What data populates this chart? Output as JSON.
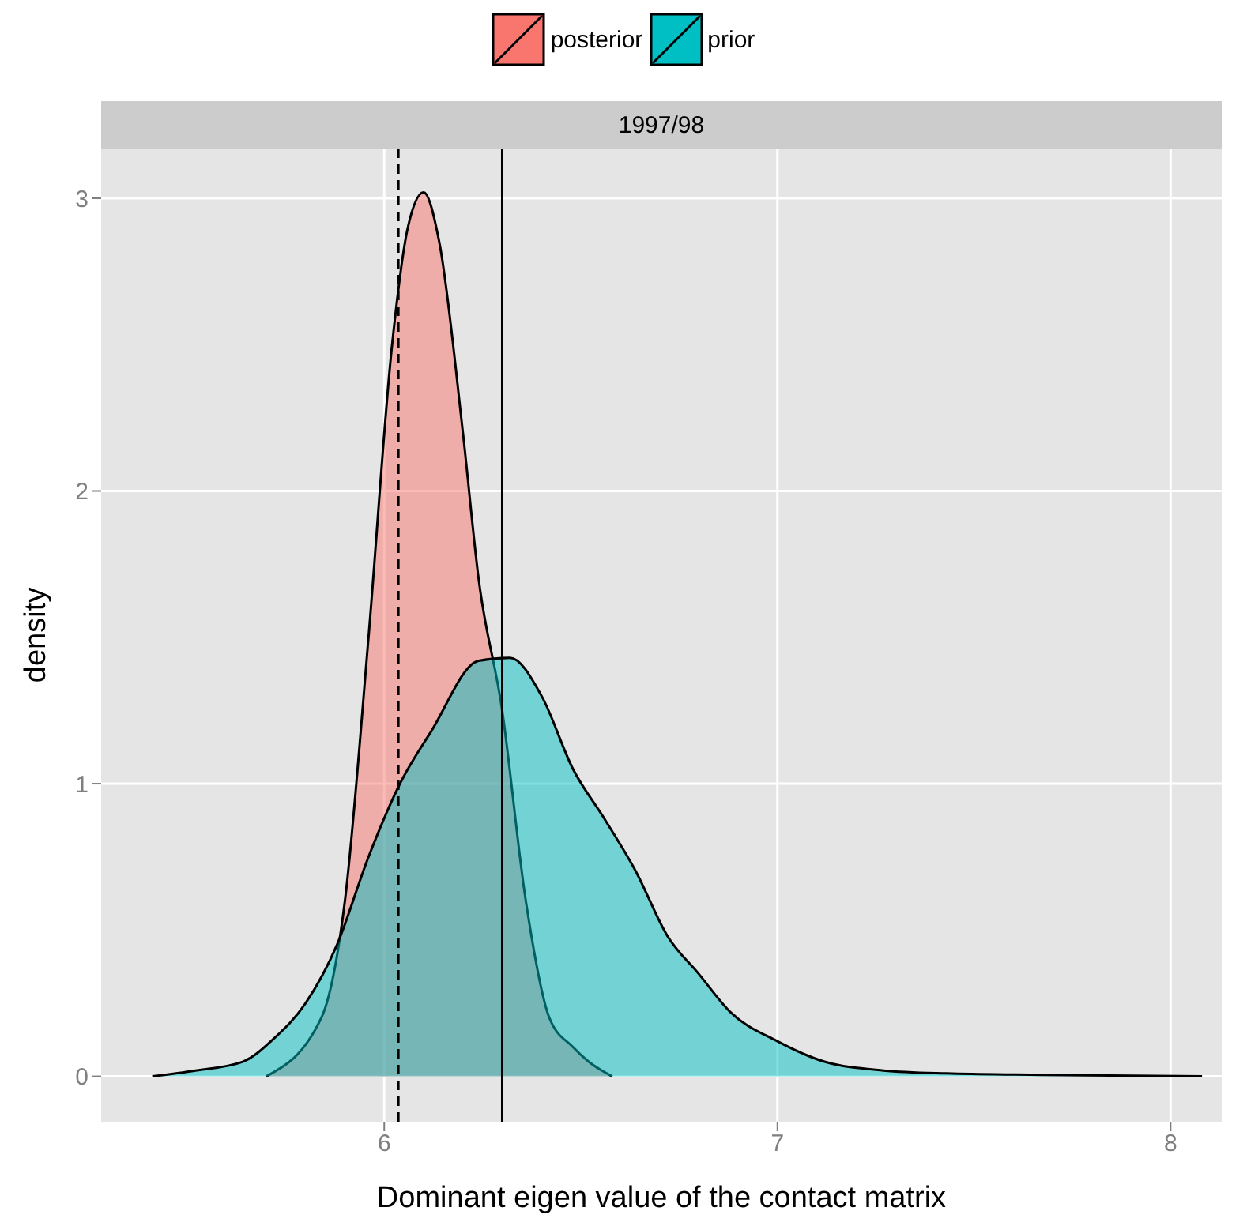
{
  "chart_data": {
    "type": "area",
    "title": "1997/98",
    "xlabel": "Dominant eigen value of the contact matrix",
    "ylabel": "density",
    "series": [
      {
        "name": "posterior",
        "color": "#f8766d",
        "x": [
          5.7,
          5.84,
          5.9,
          5.96,
          6.02,
          6.06,
          6.1,
          6.14,
          6.2,
          6.24,
          6.3,
          6.36,
          6.42,
          6.48,
          6.52,
          6.58
        ],
        "values": [
          0,
          0.2,
          0.6,
          1.5,
          2.5,
          2.9,
          3.02,
          2.85,
          2.2,
          1.7,
          1.25,
          0.6,
          0.2,
          0.1,
          0.05,
          0
        ]
      },
      {
        "name": "prior",
        "color": "#00bfc4",
        "x": [
          5.41,
          5.52,
          5.64,
          5.72,
          5.8,
          5.88,
          5.96,
          6.04,
          6.12,
          6.24,
          6.32,
          6.4,
          6.48,
          6.56,
          6.64,
          6.72,
          6.8,
          6.88,
          7.0,
          7.12,
          7.27,
          7.43,
          7.67,
          8.08
        ],
        "values": [
          0,
          0.02,
          0.05,
          0.13,
          0.25,
          0.45,
          0.75,
          1.0,
          1.18,
          1.42,
          1.43,
          1.3,
          1.05,
          0.88,
          0.7,
          0.48,
          0.35,
          0.22,
          0.12,
          0.05,
          0.02,
          0.01,
          0.005,
          0
        ]
      }
    ],
    "xlim": [
      5.28,
      8.13
    ],
    "xticks": [
      6,
      7,
      8
    ],
    "ylim": [
      -0.155,
      3.17
    ],
    "yticks": [
      0,
      1,
      2,
      3
    ],
    "grid": true,
    "legend": "top",
    "ref_lines": [
      {
        "axis": "x",
        "value": 6.036,
        "line_style": "dashed",
        "color": "#000000"
      },
      {
        "axis": "x",
        "value": 6.3,
        "line_style": "solid",
        "color": "#000000"
      }
    ]
  }
}
